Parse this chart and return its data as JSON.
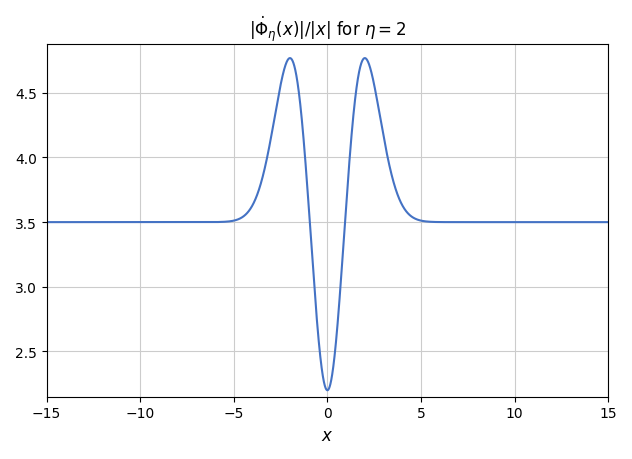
{
  "eta": 2,
  "x_min": -15,
  "x_max": 15,
  "ylim": [
    2.15,
    4.88
  ],
  "xlabel": "$x$",
  "title": "$|\\dot{\\Phi}_{\\eta}(x)|/|x|$ for $\\eta = 2$",
  "line_color": "#4472c4",
  "line_width": 1.5,
  "grid_color": "#cccccc",
  "background_color": "white",
  "num_points": 10000,
  "xticks": [
    -15,
    -10,
    -5,
    0,
    5,
    10,
    15
  ],
  "yticks": [
    2.5,
    3.0,
    3.5,
    4.0,
    4.5
  ],
  "asymptote": 3.5,
  "peak_x": 2.0,
  "peak_y": 4.75,
  "min_y": 2.2
}
